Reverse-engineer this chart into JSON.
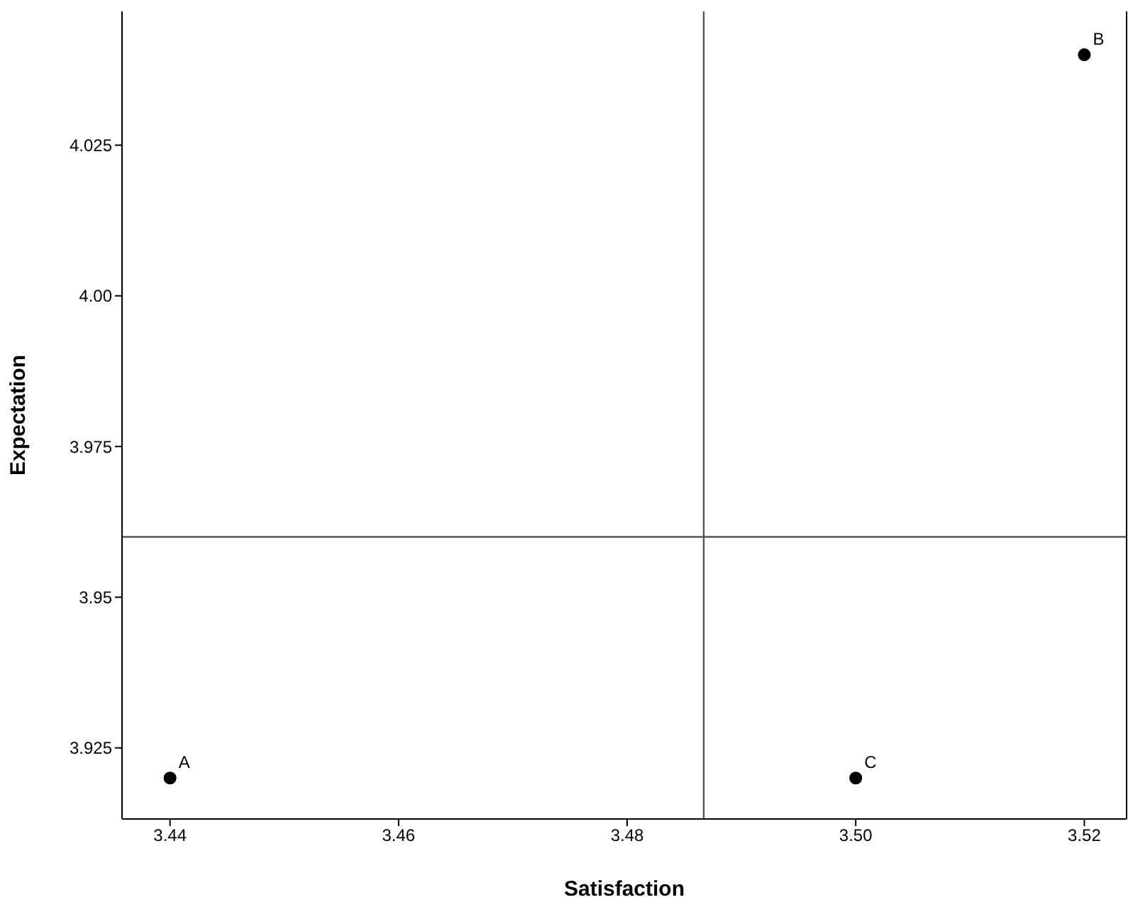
{
  "chart_data": {
    "type": "scatter",
    "xlabel": "Satisfaction",
    "ylabel": "Expectation",
    "x": [
      3.44,
      3.52,
      3.5
    ],
    "series": [
      {
        "color": "#000000",
        "values": [
          3.92,
          4.04,
          3.92
        ]
      }
    ],
    "marker": "circle",
    "xlim": [
      3.4358,
      3.5237
    ],
    "ylim": [
      3.9132,
      4.0472
    ],
    "xticks": [
      {
        "value": 3.44,
        "label": "3.44"
      },
      {
        "value": 3.46,
        "label": "3.46"
      },
      {
        "value": 3.48,
        "label": "3.48"
      },
      {
        "value": 3.5,
        "label": "3.50"
      },
      {
        "value": 3.52,
        "label": "3.52"
      }
    ],
    "yticks": [
      {
        "value": 3.925,
        "label": "3.925"
      },
      {
        "value": 3.95,
        "label": "3.95"
      },
      {
        "value": 3.975,
        "label": "3.975"
      },
      {
        "value": 4,
        "label": "4.00"
      },
      {
        "value": 4.025,
        "label": "4.025"
      }
    ],
    "ref_lines": [
      {
        "axis": "x",
        "value": 3.4867,
        "color": "#555555"
      },
      {
        "axis": "y",
        "value": 3.96,
        "color": "#555555"
      }
    ],
    "annotations": [
      {
        "text": "A",
        "x": 3.44,
        "y": 3.92
      },
      {
        "text": "B",
        "x": 3.52,
        "y": 4.04
      },
      {
        "text": "C",
        "x": 3.5,
        "y": 3.92
      }
    ]
  }
}
